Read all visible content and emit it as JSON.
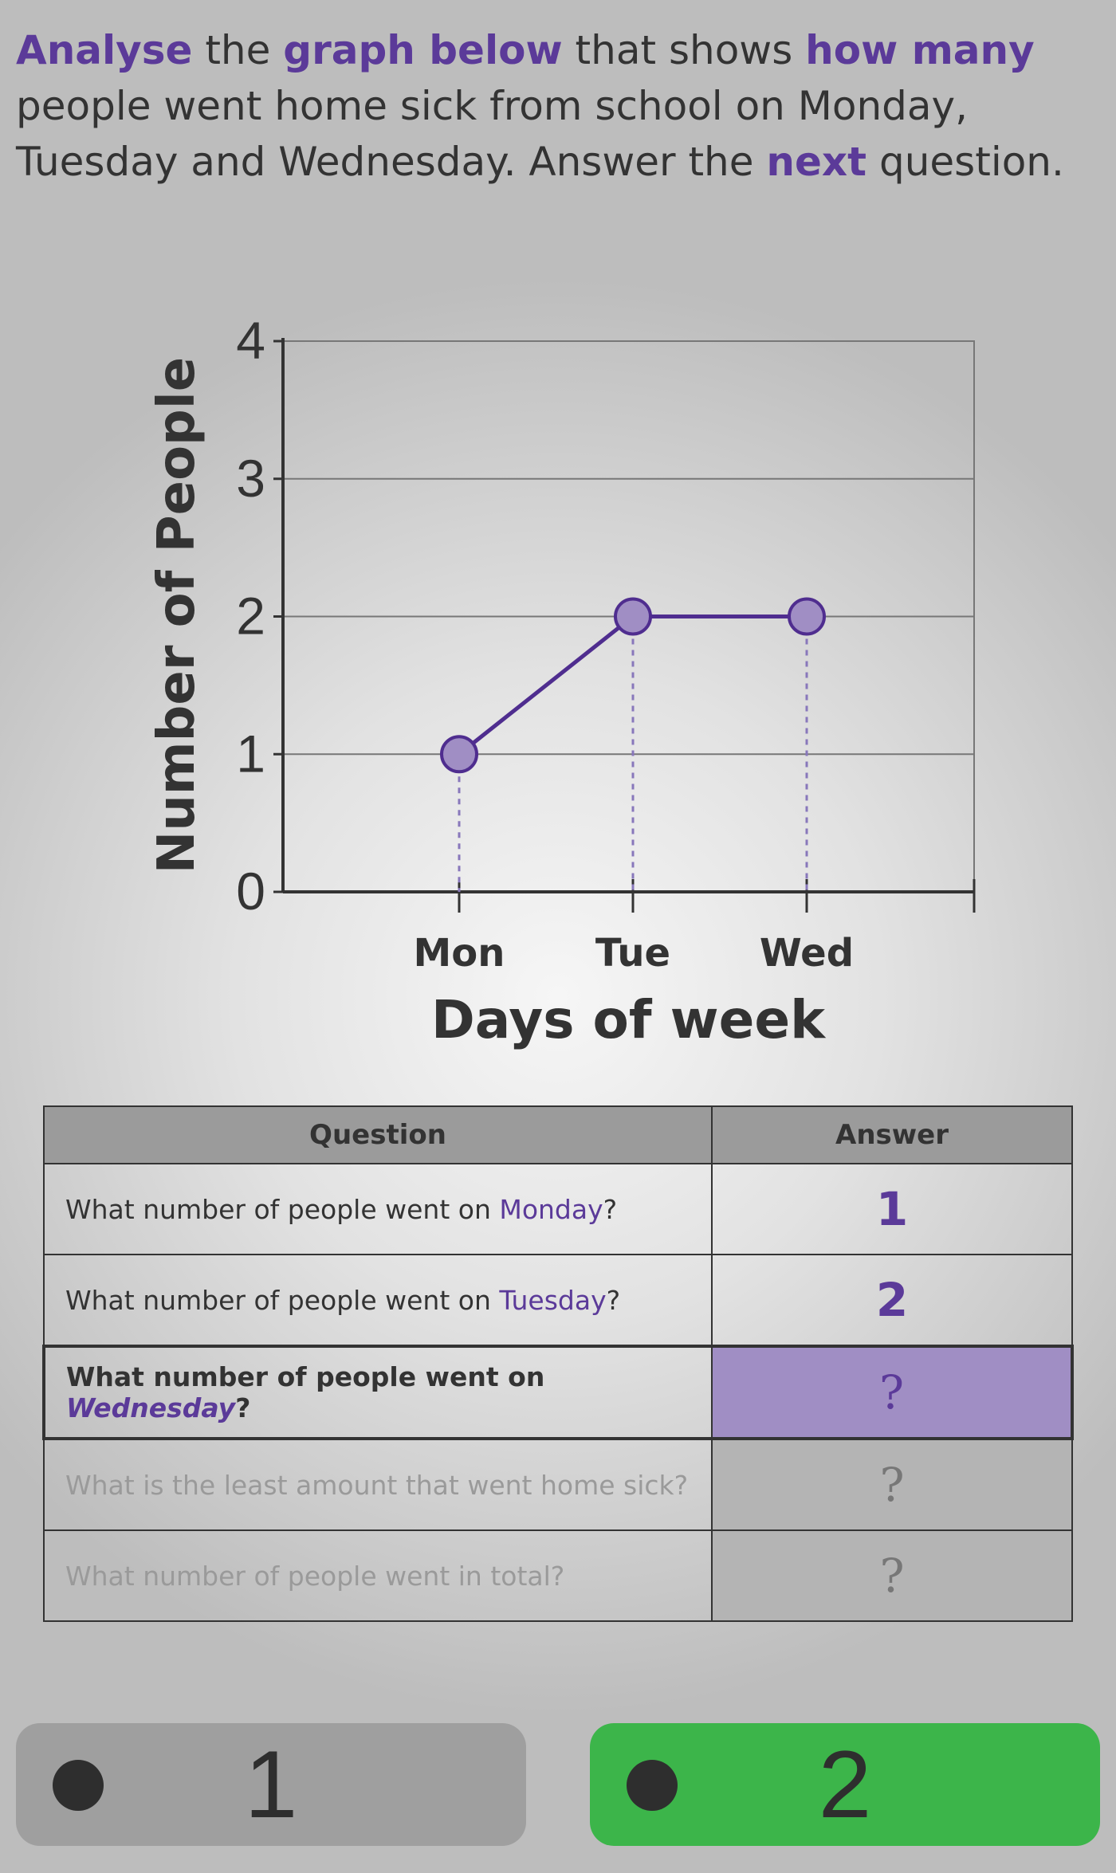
{
  "instruction": [
    {
      "text": "Analyse",
      "hl": true
    },
    {
      "text": " the ",
      "hl": false
    },
    {
      "text": "graph below",
      "hl": true
    },
    {
      "text": " that shows ",
      "hl": false
    },
    {
      "text": "how many",
      "hl": true
    },
    {
      "text": " people went home sick from school on Monday, Tuesday and Wednesday. Answer the ",
      "hl": false
    },
    {
      "text": "next",
      "hl": true
    },
    {
      "text": " question.",
      "hl": false
    }
  ],
  "chart_data": {
    "type": "line",
    "categories": [
      "Mon",
      "Tue",
      "Wed"
    ],
    "values": [
      1,
      2,
      2
    ],
    "xlabel": "Days of week",
    "ylabel": "Number of People",
    "ylim": [
      0,
      4
    ],
    "yticks": [
      "0",
      "1",
      "2",
      "3",
      "4"
    ],
    "grid": true,
    "line_color": "#4f2d8f",
    "marker_color": "#a08ec4"
  },
  "table": {
    "headers": {
      "question": "Question",
      "answer": "Answer"
    },
    "rows": [
      {
        "pre": "What number of people went on ",
        "day": "Monday",
        "post": "?",
        "answer": "1"
      },
      {
        "pre": "What number of people went on ",
        "day": "Tuesday",
        "post": "?",
        "answer": "2"
      },
      {
        "pre": "What number of people went on ",
        "day": "Wednesday",
        "post": "?",
        "answer": "?"
      },
      {
        "pre": "What is the least amount that went home sick?",
        "day": "",
        "post": "",
        "answer": "?"
      },
      {
        "pre": "What number of people went in total?",
        "day": "",
        "post": "",
        "answer": "?"
      }
    ]
  },
  "choices": {
    "option1": "1",
    "option2": "2"
  },
  "colors": {
    "accent": "#5b3a99",
    "highlight_cell": "#a08ec4",
    "correct_choice": "#3cb54a",
    "other_choice": "#9f9f9f"
  }
}
